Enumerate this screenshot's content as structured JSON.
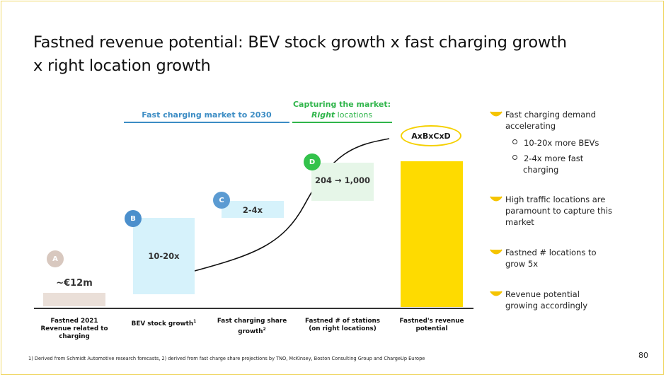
{
  "title": "Fastned revenue potential: BEV stock growth x fast charging growth x right location growth",
  "headers": {
    "market": "Fast charging market to 2030",
    "capture_line1": "Capturing the market:",
    "capture_right": "Right",
    "capture_rest": " locations"
  },
  "steps": [
    {
      "badge": "A",
      "value": "~€12m",
      "label": [
        "Fastned 2021",
        "Revenue related to",
        "charging"
      ]
    },
    {
      "badge": "B",
      "value": "10-20x",
      "label": [
        "BEV stock growth",
        ""
      ],
      "label_sup": "1"
    },
    {
      "badge": "C",
      "value": "2-4x",
      "label": [
        "Fast charging share",
        "growth"
      ],
      "label_sup": "2"
    },
    {
      "badge": "D",
      "value": "204 → 1,000",
      "label": [
        "Fastned # of stations",
        "(on right locations)"
      ]
    },
    {
      "badge": "",
      "value": "AxBxCxD",
      "label": [
        "Fastned's  revenue",
        "potential"
      ]
    }
  ],
  "bullets": [
    {
      "text": "Fast charging demand accelerating",
      "subs": [
        "10-20x more BEVs",
        "2-4x more fast charging"
      ]
    },
    {
      "text": "High traffic locations are paramount to capture this market"
    },
    {
      "text": "Fastned # locations to grow 5x"
    },
    {
      "text": "Revenue potential growing accordingly"
    }
  ],
  "footnote": "1) Derived from Schmidt Automotive research forecasts, 2) derived from fast charge share projections by TNO, McKinsey, Boston Consulting Group and ChargeUp Europe",
  "page_number": "80",
  "colors": {
    "yellow": "#fedb00",
    "blue": "#3b8cc4",
    "green": "#2fb54a",
    "lightblue": "#d6f2fb",
    "lightgreen": "#e6f6e8",
    "beige": "#eadfd8",
    "badgeA": "#d8c8bf",
    "badgeB": "#4b8fcc",
    "badgeC": "#5b9bd2",
    "badgeD": "#33c24b"
  }
}
